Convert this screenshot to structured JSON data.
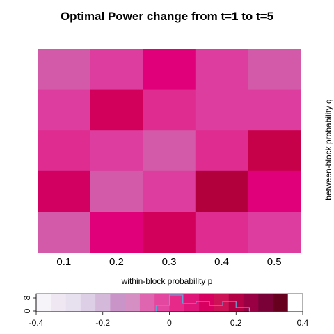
{
  "chart_data": {
    "type": "heatmap",
    "title": "Optimal Power change from t=1 to t=5",
    "xlabel": "within-block probability p",
    "ylabel": "between-block probability q",
    "x_ticks": [
      "0.1",
      "0.2",
      "0.3",
      "0.4",
      "0.5"
    ],
    "y_rows": 5,
    "grid": false,
    "cell_colors": [
      [
        "#d35aa8",
        "#dd3d9e",
        "#e0007a",
        "#dd3d9e",
        "#d35aa8"
      ],
      [
        "#dd3d9e",
        "#d2005a",
        "#de2c90",
        "#dd3d9e",
        "#dd3d9e"
      ],
      [
        "#de2c90",
        "#dd3d9e",
        "#d35aa8",
        "#de2c90",
        "#c7004a"
      ],
      [
        "#d20060",
        "#d35aa8",
        "#dd3d9e",
        "#b2003c",
        "#e0007a"
      ],
      [
        "#d35aa8",
        "#e0007a",
        "#d2005a",
        "#de2c90",
        "#dd3d9e"
      ]
    ],
    "color_key": {
      "range": [
        -0.4,
        0.4
      ],
      "ticks": [
        "-0.4",
        "-0.2",
        "0",
        "0.2",
        "0.4"
      ],
      "count_ticks": [
        "0",
        "8"
      ],
      "swatches": [
        "#f7f4f9",
        "#efe8f3",
        "#e7e1ef",
        "#ddcfe6",
        "#d4b9da",
        "#c994c7",
        "#d58fc2",
        "#df65b0",
        "#e3479f",
        "#e7298a",
        "#e0157a",
        "#d70060",
        "#ce1256",
        "#b40045",
        "#980043",
        "#7a0138",
        "#67001f",
        "#ffffff"
      ],
      "histogram": [
        0,
        0,
        0,
        0,
        0,
        0,
        0,
        0,
        0,
        3,
        8,
        4,
        5,
        3,
        5,
        2,
        0,
        0,
        0,
        0
      ]
    }
  }
}
